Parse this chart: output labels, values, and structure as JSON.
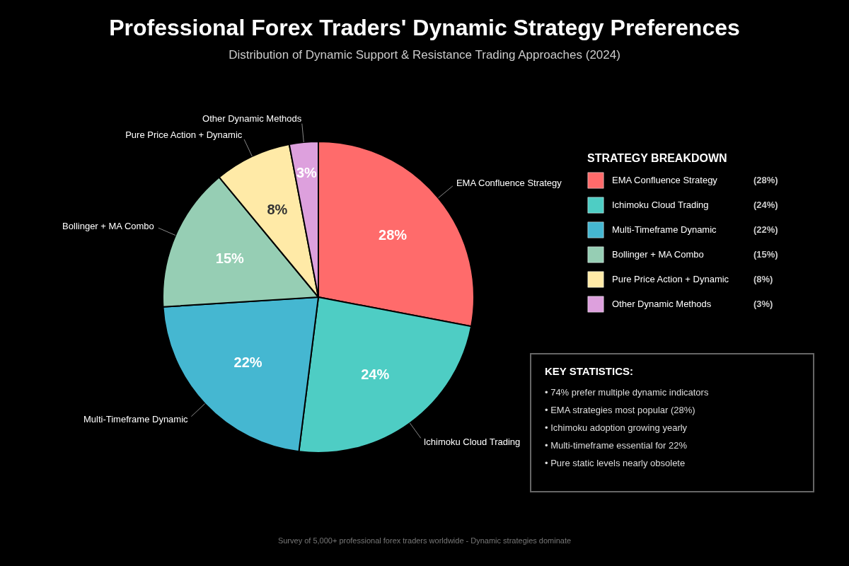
{
  "chart_data": {
    "type": "pie",
    "title": "Professional Forex Traders' Dynamic Strategy Preferences",
    "subtitle": "Distribution of Dynamic Support & Resistance Trading Approaches (2024)",
    "categories": [
      "EMA Confluence Strategy",
      "Ichimoku Cloud Trading",
      "Multi-Timeframe Dynamic",
      "Bollinger + MA Combo",
      "Pure Price Action + Dynamic",
      "Other Dynamic Methods"
    ],
    "values": [
      28,
      24,
      22,
      15,
      8,
      3
    ],
    "colors": [
      "#ff6b6b",
      "#4ecdc4",
      "#45b7d1",
      "#96ceb4",
      "#ffeaa7",
      "#dda0dd"
    ],
    "value_labels": [
      "28%",
      "24%",
      "22%",
      "15%",
      "8%",
      "3%"
    ],
    "legend": "right",
    "legend_title": "STRATEGY BREAKDOWN",
    "annotations": [
      "(28%)",
      "(24%)",
      "(22%)",
      "(15%)",
      "(8%)",
      "(3%)",
      "KEY STATISTICS:",
      "• 74% prefer multiple dynamic indicators",
      "• EMA strategies most popular (28%)",
      "• Ichimoku adoption growing yearly",
      "• Multi-timeframe essential for 22%",
      "• Pure static levels nearly obsolete",
      "Survey of 5,000+ professional forex traders worldwide - Dynamic strategies dominate"
    ]
  }
}
